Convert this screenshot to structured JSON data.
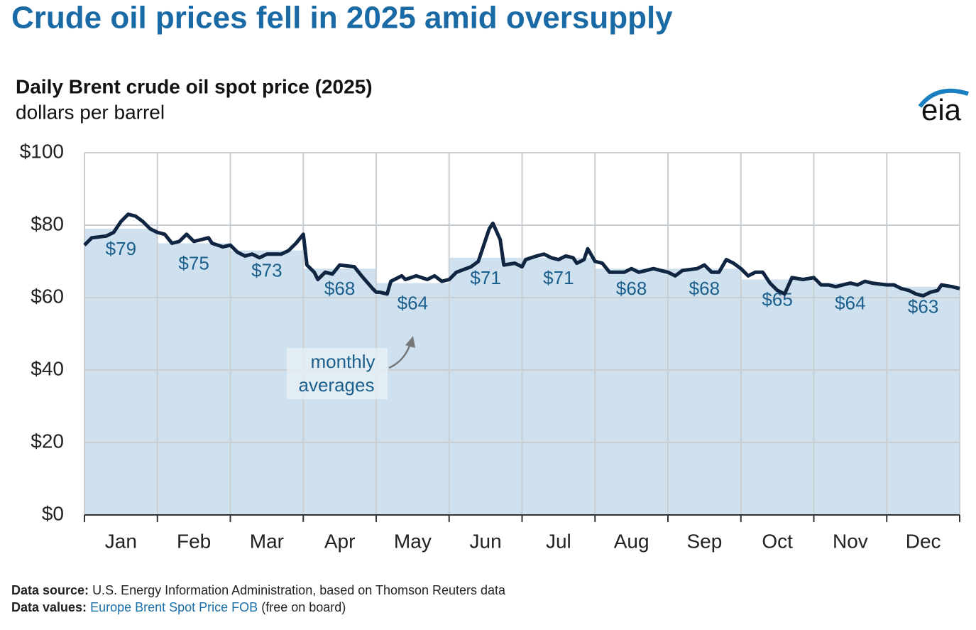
{
  "chart_data": {
    "type": "line",
    "title": "Crude oil prices fell in 2025 amid oversupply",
    "subtitle": "Daily Brent crude oil spot price (2025)",
    "y_label": "dollars per barrel",
    "logo": "eia",
    "xlim": [
      0,
      12
    ],
    "xticks": [
      {
        "value": 0.5,
        "label": "Jan"
      },
      {
        "value": 1.5,
        "label": "Feb"
      },
      {
        "value": 2.5,
        "label": "Mar"
      },
      {
        "value": 3.5,
        "label": "Apr"
      },
      {
        "value": 4.5,
        "label": "May"
      },
      {
        "value": 5.5,
        "label": "Jun"
      },
      {
        "value": 6.5,
        "label": "Jul"
      },
      {
        "value": 7.5,
        "label": "Aug"
      },
      {
        "value": 8.5,
        "label": "Sep"
      },
      {
        "value": 9.5,
        "label": "Oct"
      },
      {
        "value": 10.5,
        "label": "Nov"
      },
      {
        "value": 11.5,
        "label": "Dec"
      }
    ],
    "ylim": [
      0,
      100
    ],
    "yticks": [
      {
        "value": 0,
        "label": "$0"
      },
      {
        "value": 20,
        "label": "$20"
      },
      {
        "value": 40,
        "label": "$40"
      },
      {
        "value": 60,
        "label": "$60"
      },
      {
        "value": 80,
        "label": "$80"
      },
      {
        "value": 100,
        "label": "$100"
      }
    ],
    "grid": true,
    "series": [
      {
        "color": "#0f2541",
        "x": [
          0,
          0.1,
          0.3,
          0.4,
          0.5,
          0.6,
          0.7,
          0.8,
          0.9,
          1.0,
          1.1,
          1.2,
          1.3,
          1.4,
          1.5,
          1.7,
          1.75,
          1.9,
          2.0,
          2.1,
          2.2,
          2.3,
          2.4,
          2.5,
          2.7,
          2.8,
          2.9,
          3.0,
          3.05,
          3.15,
          3.2,
          3.3,
          3.4,
          3.5,
          3.7,
          3.8,
          3.95,
          4.0,
          4.05,
          4.15,
          4.2,
          4.35,
          4.4,
          4.55,
          4.7,
          4.8,
          4.9,
          5.0,
          5.1,
          5.3,
          5.4,
          5.45,
          5.5,
          5.55,
          5.6,
          5.7,
          5.75,
          5.9,
          6.0,
          6.05,
          6.2,
          6.3,
          6.4,
          6.5,
          6.6,
          6.7,
          6.75,
          6.85,
          6.9,
          7.0,
          7.1,
          7.2,
          7.4,
          7.5,
          7.6,
          7.7,
          7.8,
          7.9,
          8.0,
          8.1,
          8.2,
          8.4,
          8.5,
          8.6,
          8.7,
          8.8,
          8.9,
          9.0,
          9.1,
          9.2,
          9.3,
          9.4,
          9.5,
          9.6,
          9.7,
          9.85,
          10.0,
          10.1,
          10.2,
          10.3,
          10.4,
          10.5,
          10.6,
          10.7,
          10.8,
          11.0,
          11.1,
          11.2,
          11.3,
          11.4,
          11.5,
          11.6,
          11.7,
          11.75,
          11.9,
          12.0
        ],
        "values": [
          74.5,
          76.5,
          77,
          78,
          81,
          83,
          82.5,
          81,
          79,
          78,
          77.5,
          75,
          75.5,
          77.5,
          75.5,
          76.5,
          75,
          74,
          74.5,
          72.5,
          71.5,
          72,
          71,
          72,
          72,
          73,
          75,
          77.5,
          69,
          67,
          65,
          67,
          66.5,
          69,
          68.5,
          66,
          62.5,
          61.5,
          61.5,
          61,
          64.5,
          66,
          65,
          66,
          65,
          66,
          64.5,
          65,
          67,
          68.5,
          70,
          73,
          76,
          79,
          80.5,
          76,
          69,
          69.5,
          68.5,
          70.5,
          71.5,
          72,
          71,
          70.5,
          71.5,
          71,
          69.5,
          70.5,
          73.5,
          70,
          69.5,
          67,
          67,
          68,
          67,
          67.5,
          68,
          67.5,
          67,
          66,
          67.5,
          68,
          69,
          67,
          67,
          70.5,
          69.5,
          68,
          66,
          67,
          67,
          64,
          62,
          61,
          65.5,
          65,
          65.5,
          63.5,
          63.5,
          63,
          63.5,
          64,
          63.5,
          64.5,
          64,
          63.5,
          63.5,
          62.5,
          62,
          61,
          60.5,
          61.5,
          62,
          63.5,
          63,
          62.5
        ]
      }
    ],
    "monthly_averages": {
      "color": "#cfe1ee",
      "values": [
        79,
        75,
        73,
        68,
        64,
        71,
        71,
        68,
        68,
        65,
        64,
        63
      ],
      "value_labels": [
        "$79",
        "$75",
        "$73",
        "$68",
        "$64",
        "$71",
        "$71",
        "$68",
        "$68",
        "$65",
        "$64",
        "$63"
      ]
    },
    "annotation": [
      "monthly",
      "averages"
    ],
    "footnote": {
      "source_label": "Data source:",
      "source_text": "U.S. Energy Information Administration, based on Thomson Reuters data",
      "values_label": "Data values:",
      "values_link": "Europe Brent Spot Price FOB",
      "values_text": "(free on board)"
    }
  }
}
